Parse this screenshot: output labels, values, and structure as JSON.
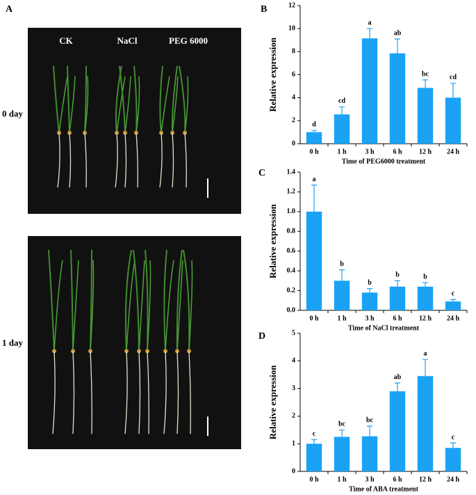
{
  "figure": {
    "panels": [
      "A",
      "B",
      "C",
      "D"
    ],
    "photo_labels": [
      "CK",
      "NaCl",
      "PEG 6000"
    ],
    "row_labels": [
      "0 day",
      "1 day"
    ]
  },
  "chart_data": [
    {
      "type": "bar",
      "y_label": "Relative expression",
      "x_label": "Time of  PEG6000 treatment",
      "categories": [
        "0 h",
        "1 h",
        "3 h",
        "6 h",
        "12 h",
        "24 h"
      ],
      "values": [
        1.0,
        2.55,
        9.15,
        7.85,
        4.85,
        4.0
      ],
      "errors": [
        0.15,
        0.65,
        0.85,
        1.25,
        0.7,
        1.25
      ],
      "annotations": [
        "d",
        "cd",
        "a",
        "ab",
        "bc",
        "cd"
      ],
      "color": "#1aa3f5",
      "ylim": [
        0,
        12
      ],
      "yticks": [
        0,
        2,
        4,
        6,
        8,
        10,
        12
      ]
    },
    {
      "type": "bar",
      "y_label": "Relative expression",
      "x_label": "Time of NaCl treatment",
      "categories": [
        "0 h",
        "1 h",
        "3 h",
        "6 h",
        "12 h",
        "24 h"
      ],
      "values": [
        1.0,
        0.3,
        0.18,
        0.24,
        0.24,
        0.09
      ],
      "errors": [
        0.27,
        0.11,
        0.04,
        0.06,
        0.04,
        0.02
      ],
      "annotations": [
        "a",
        "b",
        "b",
        "b",
        "b",
        "c"
      ],
      "color": "#1aa3f5",
      "ylim": [
        0,
        1.4
      ],
      "yticks": [
        {
          "value": 0,
          "label": "0.0"
        },
        0.2,
        0.4,
        0.6,
        0.8,
        {
          "value": 1,
          "label": "1.0"
        },
        1.2,
        1.4
      ]
    },
    {
      "type": "bar",
      "y_label": "Relative expression",
      "x_label": "Time of ABA treatment",
      "categories": [
        "0 h",
        "1 h",
        "3 h",
        "6 h",
        "12 h",
        "24 h"
      ],
      "values": [
        1.0,
        1.25,
        1.27,
        2.9,
        3.45,
        0.85
      ],
      "errors": [
        0.15,
        0.25,
        0.37,
        0.3,
        0.6,
        0.18
      ],
      "annotations": [
        "c",
        "bc",
        "bc",
        "ab",
        "a",
        "c"
      ],
      "color": "#1aa3f5",
      "ylim": [
        0,
        5
      ],
      "yticks": [
        0,
        1,
        2,
        3,
        4,
        5
      ]
    }
  ]
}
